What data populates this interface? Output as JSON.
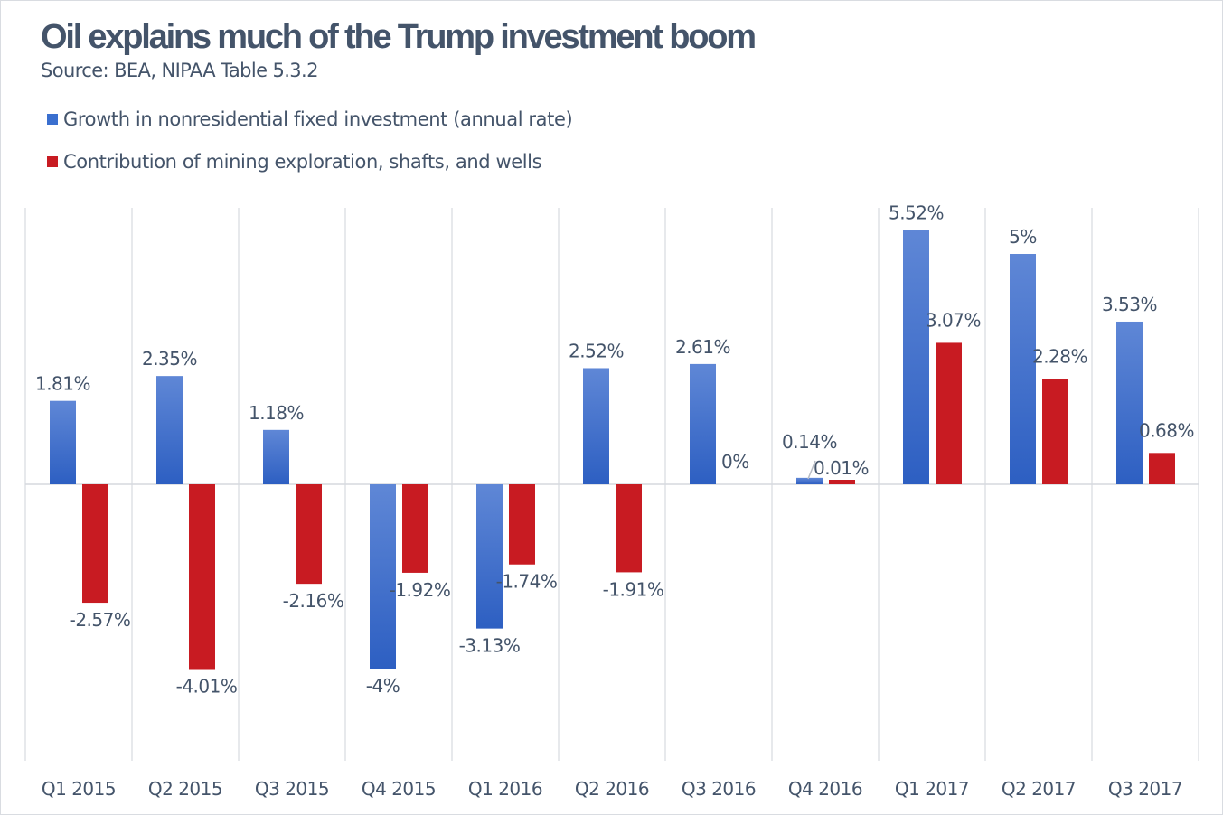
{
  "chart_data": {
    "type": "bar",
    "title": "Oil explains much of the Trump investment boom",
    "subtitle": "Source: BEA, NIPAA Table 5.3.2",
    "categories": [
      "Q1 2015",
      "Q2 2015",
      "Q3 2015",
      "Q4 2015",
      "Q1 2016",
      "Q2 2016",
      "Q3 2016",
      "Q4 2016",
      "Q1 2017",
      "Q2 2017",
      "Q3 2017"
    ],
    "series": [
      {
        "name": "Growth in nonresidential fixed investment (annual rate)",
        "color": "#3a6fcf",
        "values": [
          1.81,
          2.35,
          1.18,
          -4,
          -3.13,
          2.52,
          2.61,
          0.14,
          5.52,
          5,
          3.53
        ],
        "labels": [
          "1.81%",
          "2.35%",
          "1.18%",
          "-4%",
          "-3.13%",
          "2.52%",
          "2.61%",
          "0.14%",
          "5.52%",
          "5%",
          "3.53%"
        ]
      },
      {
        "name": "Contribution of mining exploration, shafts, and wells",
        "color": "#c81b22",
        "values": [
          -2.57,
          -4.01,
          -2.16,
          -1.92,
          -1.74,
          -1.91,
          0,
          0.01,
          3.07,
          2.28,
          0.68
        ],
        "labels": [
          "-2.57%",
          "-4.01%",
          "-2.16%",
          "-1.92%",
          "-1.74%",
          "-1.91%",
          "0%",
          "0.01%",
          "3.07%",
          "2.28%",
          "0.68%"
        ]
      }
    ],
    "legend_position": "top-left",
    "grid": "vertical category separators",
    "ylim": [
      -6,
      6
    ]
  }
}
